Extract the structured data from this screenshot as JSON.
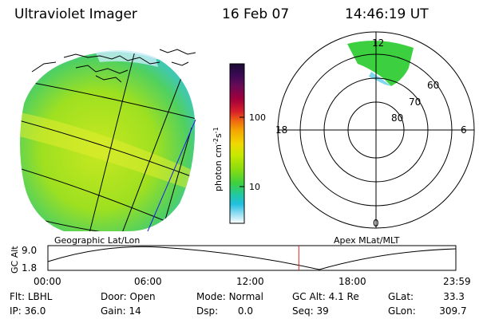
{
  "header": {
    "instrument": "Ultraviolet Imager",
    "date": "16 Feb 07",
    "time": "14:46:19 UT"
  },
  "colorbar": {
    "unit_prefix": "photon cm",
    "unit_exp1": "-2",
    "unit_mid": "s",
    "unit_exp2": "-1",
    "ticks": [
      "100",
      "10"
    ],
    "colors": [
      "#1a0a33",
      "#3a0a55",
      "#6a0a55",
      "#a0003c",
      "#d8202a",
      "#f06a10",
      "#f5a800",
      "#f0d800",
      "#c8e800",
      "#8adc10",
      "#3cd040",
      "#22c8a0",
      "#20c0e0",
      "#80d8f0",
      "#c8eef8",
      "#ffffff"
    ]
  },
  "left_panel": {
    "label": "Geographic Lat/Lon"
  },
  "right_panel": {
    "label": "Apex MLat/MLT",
    "mlt_labels": {
      "top": "12",
      "left": "18",
      "right": "6",
      "bottom": "0"
    },
    "lat_labels": [
      "60",
      "70",
      "80"
    ]
  },
  "timeline": {
    "ylabel": "GC Alt",
    "yticks": [
      "9.0",
      "1.8"
    ],
    "xticks": [
      "00:00",
      "06:00",
      "12:00",
      "18:00",
      "23:59"
    ],
    "current_time_fraction": 0.615
  },
  "info": {
    "filter": {
      "label": "Flt:",
      "value": "LBHL"
    },
    "door": {
      "label": "Door:",
      "value": "Open"
    },
    "mode": {
      "label": "Mode:",
      "value": "Normal"
    },
    "gc_alt": {
      "label": "GC Alt:",
      "value": "4.1 Re"
    },
    "glat": {
      "label": "GLat:",
      "value": "33.3"
    },
    "ip": {
      "label": "IP:",
      "value": "36.0"
    },
    "gain": {
      "label": "Gain:",
      "value": "14"
    },
    "dsp": {
      "label": "Dsp:",
      "value": "0.0"
    },
    "seq": {
      "label": "Seq:",
      "value": "39"
    },
    "glon": {
      "label": "GLon:",
      "value": "309.7"
    }
  }
}
